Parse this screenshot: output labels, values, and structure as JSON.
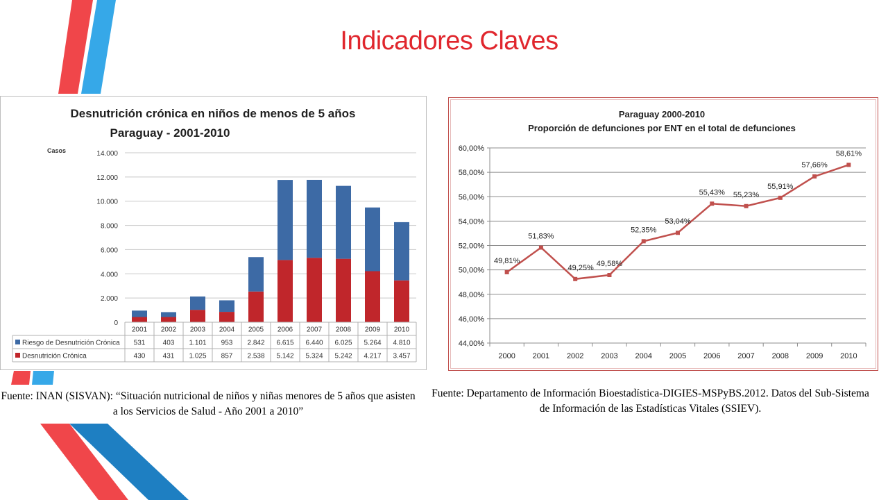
{
  "slide": {
    "title": "Indicadores Claves"
  },
  "colors": {
    "red": "#c0262b",
    "blue": "#3d6aa5",
    "line": "#c0504d",
    "title": "#e0262d"
  },
  "chart_data": [
    {
      "type": "bar",
      "stacked": true,
      "title": "Desnutrición crónica en niños de menos de 5 años",
      "subtitle": "Paraguay - 2001-2010",
      "ylabel": "Casos",
      "ylim": [
        0,
        14000
      ],
      "yticks": [
        "0",
        "2.000",
        "4.000",
        "6.000",
        "8.000",
        "10.000",
        "12.000",
        "14.000"
      ],
      "categories": [
        "2001",
        "2002",
        "2003",
        "2004",
        "2005",
        "2006",
        "2007",
        "2008",
        "2009",
        "2010"
      ],
      "series": [
        {
          "name": "Riesgo de Desnutrición Crónica",
          "values": [
            531,
            403,
            1101,
            953,
            2842,
            6615,
            6440,
            6025,
            5264,
            4810
          ],
          "labels": [
            "531",
            "403",
            "1.101",
            "953",
            "2.842",
            "6.615",
            "6.440",
            "6.025",
            "5.264",
            "4.810"
          ],
          "color": "#3d6aa5"
        },
        {
          "name": "Desnutrición Crónica",
          "values": [
            430,
            431,
            1025,
            857,
            2538,
            5142,
            5324,
            5242,
            4217,
            3457
          ],
          "labels": [
            "430",
            "431",
            "1.025",
            "857",
            "2.538",
            "5.142",
            "5.324",
            "5.242",
            "4.217",
            "3.457"
          ],
          "color": "#c0262b"
        }
      ],
      "grid": true,
      "legend": "data table below chart",
      "source": "Fuente: INAN (SISVAN): “Situación nutricional de niños y niñas menores de 5 años que asisten a los Servicios de Salud - Año 2001 a 2010”"
    },
    {
      "type": "line",
      "title": "Paraguay  2000-2010",
      "subtitle": "Proporción de defunciones por ENT en el total de defunciones",
      "ylim": [
        44,
        60
      ],
      "yticks": [
        "44,00%",
        "46,00%",
        "48,00%",
        "50,00%",
        "52,00%",
        "54,00%",
        "56,00%",
        "58,00%",
        "60,00%"
      ],
      "x": [
        "2000",
        "2001",
        "2002",
        "2003",
        "2004",
        "2005",
        "2006",
        "2007",
        "2008",
        "2009",
        "2010"
      ],
      "series": [
        {
          "values": [
            49.81,
            51.83,
            49.25,
            49.58,
            52.35,
            53.04,
            55.43,
            55.23,
            55.91,
            57.66,
            58.61
          ],
          "labels": [
            "49,81%",
            "51,83%",
            "49,25%",
            "49,58%",
            "52,35%",
            "53,04%",
            "55,43%",
            "55,23%",
            "55,91%",
            "57,66%",
            "58,61%"
          ],
          "color": "#c0504d"
        }
      ],
      "grid": true,
      "source": "Fuente: Departamento de Información Bioestadística-DIGIES-MSPyBS.2012. Datos del Sub-Sistema de Información de las Estadísticas Vitales (SSIEV)."
    }
  ]
}
